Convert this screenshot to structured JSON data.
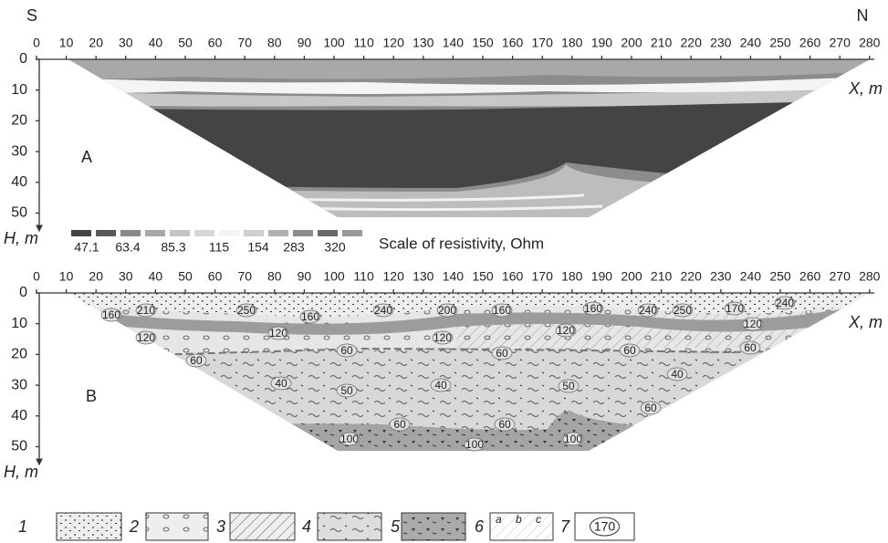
{
  "compass": {
    "south": "S",
    "north": "N"
  },
  "panels": [
    {
      "label": "A",
      "x_label": "X, m",
      "y_label": "H, m",
      "xticks": [
        0,
        10,
        20,
        30,
        40,
        50,
        60,
        70,
        80,
        90,
        100,
        110,
        120,
        130,
        140,
        150,
        160,
        170,
        180,
        190,
        200,
        210,
        220,
        230,
        240,
        250,
        260,
        270,
        280
      ],
      "yticks": [
        0,
        10,
        20,
        30,
        40,
        50
      ]
    },
    {
      "label": "B",
      "x_label": "X, m",
      "y_label": "H, m",
      "xticks": [
        0,
        10,
        20,
        30,
        40,
        50,
        60,
        70,
        80,
        90,
        100,
        110,
        120,
        130,
        140,
        150,
        160,
        170,
        180,
        190,
        200,
        210,
        220,
        230,
        240,
        250,
        260,
        270,
        280
      ],
      "yticks": [
        0,
        10,
        20,
        30,
        40,
        50
      ],
      "zone_labels": [
        210,
        250,
        160,
        160,
        240,
        200,
        160,
        160,
        240,
        250,
        170,
        240,
        120,
        120,
        120,
        120,
        120,
        60,
        60,
        60,
        60,
        60,
        40,
        50,
        40,
        50,
        40,
        60,
        60,
        60,
        100,
        100,
        100
      ]
    }
  ],
  "scale": {
    "title": "Scale of resistivity, Ohm",
    "values": [
      47.1,
      63.4,
      85.3,
      115,
      154,
      283,
      320
    ]
  },
  "legend": {
    "items": [
      {
        "number": "1"
      },
      {
        "number": "2"
      },
      {
        "number": "3"
      },
      {
        "number": "4"
      },
      {
        "number": "5"
      },
      {
        "number": "6",
        "parts": [
          "a",
          "b",
          "c"
        ]
      },
      {
        "number": "7",
        "sample": "170"
      }
    ]
  }
}
